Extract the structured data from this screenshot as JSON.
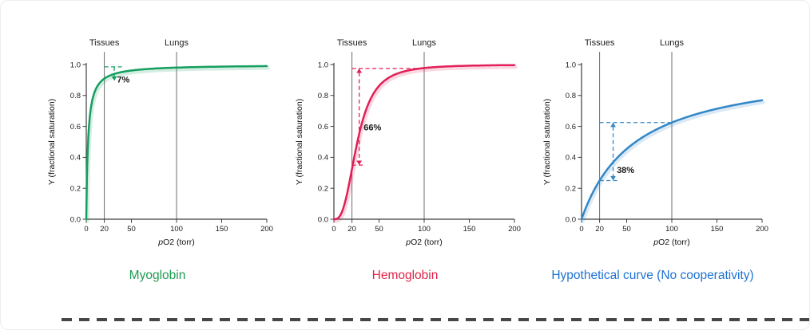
{
  "figure": {
    "background": "#ffffff",
    "border_color": "#ededed",
    "divider_color": "#474747"
  },
  "chart_data": [
    {
      "type": "line",
      "title": "Myoglobin",
      "color": "#169e60",
      "caption_color": "#1e9b50",
      "xlabel": "pO2 (torr)",
      "ylabel": "Y (fractional saturation)",
      "xlim": [
        0,
        200
      ],
      "ylim": [
        0,
        1.0
      ],
      "xticks": [
        0,
        20,
        50,
        100,
        150,
        200
      ],
      "yticks": [
        0.0,
        0.2,
        0.4,
        0.6,
        0.8,
        1.0
      ],
      "grid": false,
      "legend": "none",
      "markers": [
        {
          "label": "Tissues",
          "x": 20
        },
        {
          "label": "Lungs",
          "x": 100
        }
      ],
      "model": {
        "kind": "hill",
        "p50": 2.0,
        "n": 1
      },
      "points": {
        "x": [
          0,
          2,
          5,
          10,
          20,
          50,
          100,
          150,
          200
        ],
        "y": [
          0,
          0.5,
          0.71,
          0.83,
          0.91,
          0.96,
          0.98,
          0.99,
          0.99
        ]
      },
      "key_values": {
        "tissues_saturation": 0.91,
        "lungs_saturation": 0.98,
        "difference_label": "7%"
      },
      "annotation": {
        "label": "7%",
        "label_pos": {
          "x": 34,
          "y": 0.885
        },
        "dashes": [
          {
            "x1": 20,
            "y1": 0.985,
            "x2": 41,
            "y2": 0.985
          }
        ],
        "arrow": {
          "x": 31,
          "y1": 0.985,
          "y2": 0.895,
          "heads": "end"
        }
      }
    },
    {
      "type": "line",
      "title": "Hemoglobin",
      "color": "#e21f58",
      "caption_color": "#e22349",
      "xlabel": "pO2 (torr)",
      "ylabel": "Y (fractional saturation)",
      "xlim": [
        0,
        200
      ],
      "ylim": [
        0,
        1.0
      ],
      "xticks": [
        0,
        20,
        50,
        100,
        150,
        200
      ],
      "yticks": [
        0.0,
        0.2,
        0.4,
        0.6,
        0.8,
        1.0
      ],
      "grid": false,
      "legend": "none",
      "markers": [
        {
          "label": "Tissues",
          "x": 20
        },
        {
          "label": "Lungs",
          "x": 100
        }
      ],
      "model": {
        "kind": "hill",
        "p50": 26,
        "n": 2.8
      },
      "points": {
        "x": [
          0,
          5,
          10,
          20,
          26,
          30,
          40,
          50,
          60,
          80,
          100,
          150,
          200
        ],
        "y": [
          0,
          0.01,
          0.06,
          0.32,
          0.5,
          0.6,
          0.77,
          0.86,
          0.91,
          0.96,
          0.98,
          0.99,
          1.0
        ]
      },
      "key_values": {
        "tissues_saturation": 0.32,
        "lungs_saturation": 0.98,
        "difference_label": "66%"
      },
      "annotation": {
        "label": "66%",
        "label_pos": {
          "x": 33,
          "y": 0.575
        },
        "dashes": [
          {
            "x1": 20,
            "y1": 0.975,
            "x2": 100,
            "y2": 0.975
          },
          {
            "x1": 20,
            "y1": 0.35,
            "x2": 35,
            "y2": 0.35
          }
        ],
        "arrow": {
          "x": 28,
          "y1": 0.975,
          "y2": 0.35,
          "heads": "both"
        }
      }
    },
    {
      "type": "line",
      "title": "Hypothetical curve (No cooperativity)",
      "color": "#3487c6",
      "caption_color": "#1c72d2",
      "xlabel": "pO2 (torr)",
      "ylabel": "Y (fractional saturation)",
      "xlim": [
        0,
        200
      ],
      "ylim": [
        0,
        1.0
      ],
      "xticks": [
        0,
        20,
        50,
        100,
        150,
        200
      ],
      "yticks": [
        0.0,
        0.2,
        0.4,
        0.6,
        0.8,
        1.0
      ],
      "grid": false,
      "legend": "none",
      "markers": [
        {
          "label": "Tissues",
          "x": 20
        },
        {
          "label": "Lungs",
          "x": 100
        }
      ],
      "model": {
        "kind": "hill",
        "p50": 60,
        "n": 1
      },
      "points": {
        "x": [
          0,
          10,
          20,
          50,
          100,
          150,
          200
        ],
        "y": [
          0,
          0.14,
          0.25,
          0.45,
          0.63,
          0.71,
          0.77
        ]
      },
      "key_values": {
        "tissues_saturation": 0.25,
        "lungs_saturation": 0.63,
        "difference_label": "38%"
      },
      "annotation": {
        "label": "38%",
        "label_pos": {
          "x": 39,
          "y": 0.3
        },
        "dashes": [
          {
            "x1": 20,
            "y1": 0.625,
            "x2": 100,
            "y2": 0.625
          },
          {
            "x1": 20,
            "y1": 0.25,
            "x2": 40,
            "y2": 0.25
          }
        ],
        "arrow": {
          "x": 35,
          "y1": 0.625,
          "y2": 0.25,
          "heads": "both"
        }
      }
    }
  ]
}
